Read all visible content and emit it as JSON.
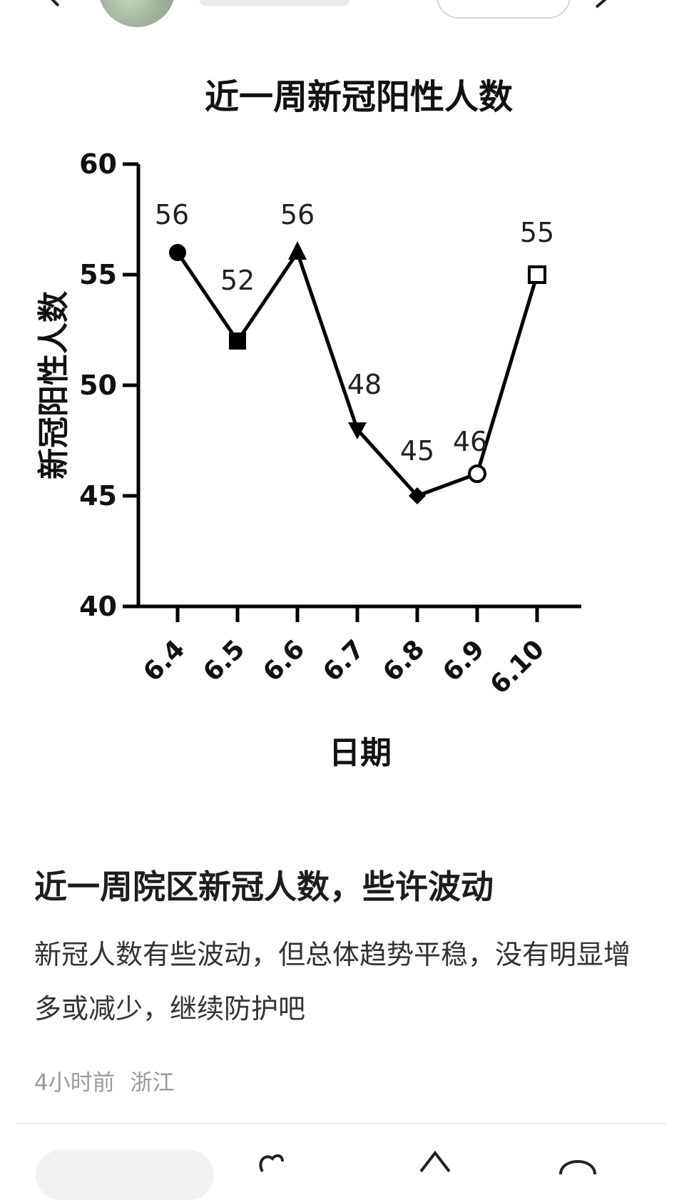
{
  "post": {
    "title": "近一周院区新冠人数，些许波动",
    "body": "新冠人数有些波动，但总体趋势平稳，没有明显增多或减少，继续防护吧",
    "time": "4小时前",
    "location": "浙江"
  },
  "chart_data": {
    "type": "line",
    "title": "近一周新冠阳性人数",
    "xlabel": "日期",
    "ylabel": "新冠阳性人数",
    "categories": [
      "6.4",
      "6.5",
      "6.6",
      "6.7",
      "6.8",
      "6.9",
      "6.10"
    ],
    "values": [
      56,
      52,
      56,
      48,
      45,
      46,
      55
    ],
    "markers": [
      "filled-circle",
      "filled-square",
      "filled-triangle-up",
      "filled-triangle-down",
      "filled-diamond",
      "open-circle",
      "open-square"
    ],
    "ylim": [
      40,
      60
    ],
    "yticks": [
      40,
      45,
      50,
      55,
      60
    ],
    "grid": false,
    "line_color": "#000000"
  }
}
